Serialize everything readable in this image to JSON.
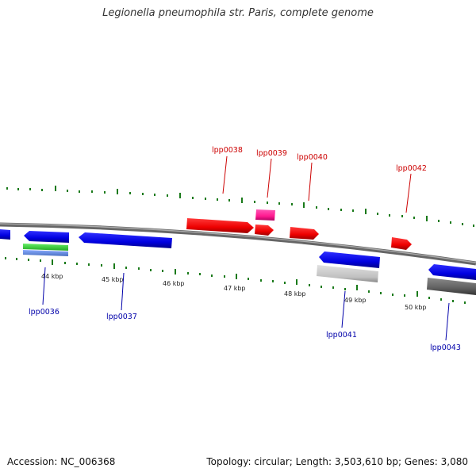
{
  "title": "Legionella pneumophila str. Paris, complete genome",
  "footer": {
    "accession": "Accession: NC_006368",
    "topology": "Topology: circular; Length: 3,503,610 bp; Genes: 3,080"
  },
  "colors": {
    "backbone": "#777777",
    "forward_gene": "#ff0000",
    "reverse_gene": "#0000ee",
    "forward_label": "#cc0000",
    "reverse_label": "#0000aa",
    "tick": "#1a7a1a",
    "trna": "#ff2d9a",
    "green_feature": "#33cc33",
    "blue_feature": "#5a8ae0",
    "light_gray_feature": "#c0c0c0",
    "dark_gray_feature": "#666666"
  },
  "kbp_labels": [
    "44 kbp",
    "45 kbp",
    "46 kbp",
    "47 kbp",
    "48 kbp",
    "49 kbp",
    "50 kbp"
  ],
  "gene_labels_forward": [
    "lpp0038",
    "lpp0039",
    "lpp0040",
    "lpp0042"
  ],
  "gene_labels_reverse": [
    "lpp0036",
    "lpp0037",
    "lpp0041",
    "lpp0043"
  ]
}
